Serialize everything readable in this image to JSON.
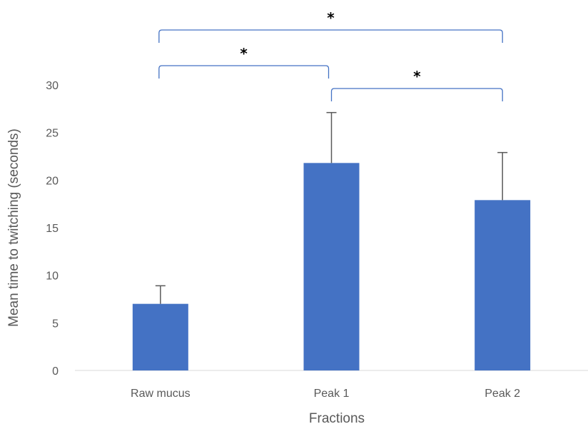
{
  "chart_data": {
    "type": "bar",
    "title": "",
    "xlabel": "Fractions",
    "ylabel": "Mean time to twitching (seconds)",
    "categories": [
      "Raw mucus",
      "Peak 1",
      "Peak 2"
    ],
    "values": [
      7.0,
      21.8,
      17.9
    ],
    "error_bars": [
      1.9,
      5.3,
      5.0
    ],
    "ylim": [
      0,
      30
    ],
    "yticks": [
      0,
      5,
      10,
      15,
      20,
      25,
      30
    ],
    "grid": false,
    "bar_color": "#4472C4",
    "bracket_color": "#4472C4",
    "error_color": "#595959",
    "significance": [
      {
        "from": 0,
        "to": 1,
        "label": "*"
      },
      {
        "from": 1,
        "to": 2,
        "label": "*"
      },
      {
        "from": 0,
        "to": 2,
        "label": "*"
      }
    ]
  }
}
